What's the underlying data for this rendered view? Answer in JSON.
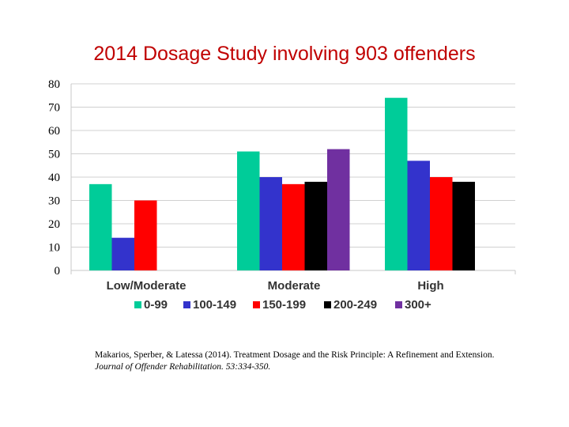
{
  "slide": {
    "title": "2014 Dosage  Study involving 903 offenders"
  },
  "citation": {
    "authors": "Makarios, Sperber, & Latessa (2014).  Treatment Dosage and the Risk Principle:  A Refinement and Extension.",
    "journal": "Journal of Offender Rehabilitation.  53:334-350."
  },
  "chart_data": {
    "type": "bar",
    "title": "",
    "xlabel": "",
    "ylabel": "",
    "ylim": [
      0,
      80
    ],
    "yticks": [
      0,
      10,
      20,
      30,
      40,
      50,
      60,
      70,
      80
    ],
    "grid": true,
    "legend": "bottom",
    "categories": [
      "Low/Moderate",
      "Moderate",
      "High"
    ],
    "series": [
      {
        "name": "0-99",
        "color": "#00cc99",
        "values": [
          37,
          51,
          74
        ]
      },
      {
        "name": "100-149",
        "color": "#3333cc",
        "values": [
          14,
          40,
          47
        ]
      },
      {
        "name": "150-199",
        "color": "#ff0000",
        "values": [
          30,
          37,
          40
        ]
      },
      {
        "name": "200-249",
        "color": "#000000",
        "values": [
          null,
          38,
          38
        ]
      },
      {
        "name": "300+",
        "color": "#7030a0",
        "values": [
          null,
          52,
          null
        ]
      }
    ]
  }
}
